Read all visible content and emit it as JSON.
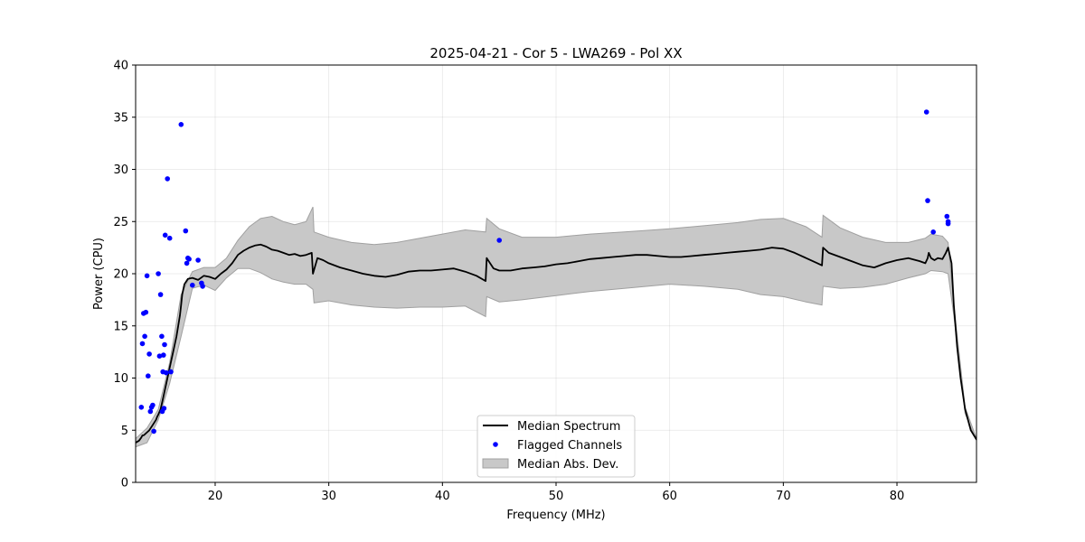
{
  "chart_data": {
    "type": "line",
    "title": "2025-04-21 - Cor 5 - LWA269 - Pol XX",
    "xlabel": "Frequency (MHz)",
    "ylabel": "Power (CPU)",
    "xlim": [
      13,
      87
    ],
    "ylim": [
      0,
      40
    ],
    "xticks": [
      20,
      30,
      40,
      50,
      60,
      70,
      80
    ],
    "yticks": [
      0,
      5,
      10,
      15,
      20,
      25,
      30,
      35,
      40
    ],
    "grid": true,
    "legend_position": "bottom-center",
    "colors": {
      "median": "#000000",
      "flagged": "#0000ff",
      "mad_fill": "#c8c8c8",
      "mad_edge": "#a0a0a0"
    },
    "series": [
      {
        "name": "Median Spectrum",
        "kind": "line",
        "x": [
          13.0,
          13.3,
          13.5,
          13.6,
          13.7,
          13.8,
          14.0,
          14.2,
          14.5,
          14.8,
          14.9,
          15.0,
          15.2,
          15.4,
          15.6,
          15.8,
          16.0,
          16.3,
          16.6,
          16.9,
          17.0,
          17.1,
          17.3,
          17.6,
          18.0,
          18.5,
          19.0,
          19.5,
          20.0,
          20.5,
          21.0,
          21.5,
          22.0,
          22.5,
          23.0,
          23.5,
          24.0,
          24.5,
          25.0,
          25.5,
          26.0,
          26.5,
          27.0,
          27.5,
          28.0,
          28.5,
          28.6,
          29.0,
          29.5,
          30.0,
          31.0,
          32.0,
          33.0,
          34.0,
          35.0,
          36.0,
          37.0,
          38.0,
          39.0,
          40.0,
          41.0,
          42.0,
          43.0,
          43.8,
          43.9,
          44.5,
          45.0,
          46.0,
          47.0,
          48.0,
          49.0,
          50.0,
          51.0,
          52.0,
          53.0,
          54.0,
          55.0,
          56.0,
          57.0,
          58.0,
          59.0,
          60.0,
          61.0,
          62.0,
          63.0,
          64.0,
          65.0,
          66.0,
          67.0,
          68.0,
          69.0,
          70.0,
          71.0,
          72.0,
          73.0,
          73.4,
          73.5,
          74.0,
          75.0,
          76.0,
          77.0,
          78.0,
          79.0,
          80.0,
          81.0,
          82.0,
          82.5,
          82.7,
          82.8,
          83.0,
          83.3,
          83.6,
          84.0,
          84.3,
          84.5,
          84.8,
          85.0,
          85.3,
          85.6,
          86.0,
          86.5,
          87.0
        ],
        "y": [
          3.8,
          4.0,
          4.3,
          4.5,
          4.5,
          4.6,
          4.8,
          5.0,
          5.5,
          6.0,
          6.3,
          6.5,
          7.0,
          8.0,
          9.0,
          10.0,
          11.0,
          12.5,
          14.0,
          16.0,
          17.0,
          18.0,
          19.0,
          19.5,
          19.6,
          19.4,
          19.8,
          19.7,
          19.5,
          20.0,
          20.4,
          21.0,
          21.8,
          22.2,
          22.5,
          22.7,
          22.8,
          22.6,
          22.3,
          22.2,
          22.0,
          21.8,
          21.9,
          21.7,
          21.8,
          22.0,
          20.0,
          21.5,
          21.3,
          21.0,
          20.6,
          20.3,
          20.0,
          19.8,
          19.7,
          19.9,
          20.2,
          20.3,
          20.3,
          20.4,
          20.5,
          20.2,
          19.8,
          19.3,
          21.5,
          20.5,
          20.3,
          20.3,
          20.5,
          20.6,
          20.7,
          20.9,
          21.0,
          21.2,
          21.4,
          21.5,
          21.6,
          21.7,
          21.8,
          21.8,
          21.7,
          21.6,
          21.6,
          21.7,
          21.8,
          21.9,
          22.0,
          22.1,
          22.2,
          22.3,
          22.5,
          22.4,
          22.0,
          21.5,
          21.0,
          20.8,
          22.5,
          22.0,
          21.6,
          21.2,
          20.8,
          20.6,
          21.0,
          21.3,
          21.5,
          21.2,
          21.0,
          21.5,
          22.0,
          21.5,
          21.3,
          21.5,
          21.4,
          22.0,
          22.5,
          21.0,
          17.0,
          13.0,
          10.0,
          7.0,
          5.0,
          4.1
        ]
      },
      {
        "name": "Flagged Channels",
        "kind": "scatter",
        "x": [
          13.5,
          13.6,
          13.7,
          13.8,
          13.9,
          14.0,
          14.1,
          14.2,
          14.3,
          14.4,
          14.5,
          14.6,
          15.0,
          15.1,
          15.2,
          15.3,
          15.35,
          15.4,
          15.45,
          15.5,
          15.55,
          15.6,
          15.7,
          15.8,
          16.0,
          16.1,
          17.0,
          17.4,
          17.5,
          17.6,
          17.7,
          18.0,
          18.5,
          18.8,
          18.9,
          45.0,
          82.6,
          82.7,
          83.2,
          84.4,
          84.5,
          84.5
        ],
        "y": [
          7.2,
          13.3,
          16.2,
          14.0,
          16.3,
          19.8,
          10.2,
          12.3,
          6.8,
          7.2,
          7.4,
          4.9,
          20.0,
          12.1,
          18.0,
          14.0,
          6.8,
          10.6,
          12.2,
          7.1,
          13.2,
          23.7,
          10.5,
          29.1,
          23.4,
          10.6,
          34.3,
          24.1,
          21.0,
          21.5,
          21.4,
          18.9,
          21.3,
          19.1,
          18.8,
          23.2,
          35.5,
          27.0,
          24.0,
          25.5,
          25.0,
          24.8
        ]
      },
      {
        "name": "Median Abs. Dev.",
        "kind": "band",
        "x": [
          13.0,
          14.0,
          15.0,
          16.0,
          17.0,
          18.0,
          19.0,
          20.0,
          21.0,
          22.0,
          23.0,
          24.0,
          25.0,
          26.0,
          27.0,
          28.0,
          28.6,
          28.7,
          30.0,
          32.0,
          34.0,
          36.0,
          38.0,
          40.0,
          42.0,
          43.8,
          43.9,
          45.0,
          47.0,
          50.0,
          53.0,
          56.0,
          60.0,
          63.0,
          66.0,
          68.0,
          70.0,
          72.0,
          73.4,
          73.5,
          75.0,
          77.0,
          79.0,
          81.0,
          82.5,
          83.0,
          84.0,
          84.5,
          85.0,
          86.0,
          87.0
        ],
        "upper": [
          4.2,
          5.2,
          7.0,
          11.5,
          18.0,
          20.2,
          20.6,
          20.6,
          21.5,
          23.2,
          24.5,
          25.3,
          25.5,
          25.0,
          24.7,
          25.0,
          26.4,
          24.0,
          23.5,
          23.0,
          22.8,
          23.0,
          23.4,
          23.8,
          24.2,
          24.0,
          25.3,
          24.3,
          23.5,
          23.5,
          23.8,
          24.0,
          24.3,
          24.6,
          24.9,
          25.2,
          25.3,
          24.5,
          23.5,
          25.6,
          24.4,
          23.5,
          23.0,
          23.0,
          23.4,
          23.8,
          23.6,
          23.0,
          17.0,
          7.2,
          4.2
        ],
        "lower": [
          3.4,
          3.8,
          6.0,
          9.5,
          14.0,
          18.6,
          18.9,
          18.4,
          19.6,
          20.5,
          20.5,
          20.1,
          19.5,
          19.2,
          19.0,
          19.0,
          18.5,
          17.2,
          17.4,
          17.0,
          16.8,
          16.7,
          16.8,
          16.8,
          16.9,
          15.9,
          17.8,
          17.3,
          17.5,
          17.9,
          18.3,
          18.6,
          19.0,
          18.8,
          18.5,
          18.0,
          17.8,
          17.3,
          17.0,
          18.8,
          18.6,
          18.7,
          19.0,
          19.6,
          20.0,
          20.3,
          20.2,
          20.0,
          16.0,
          6.6,
          4.0
        ]
      }
    ],
    "legend": [
      "Median Spectrum",
      "Flagged Channels",
      "Median Abs. Dev."
    ]
  }
}
